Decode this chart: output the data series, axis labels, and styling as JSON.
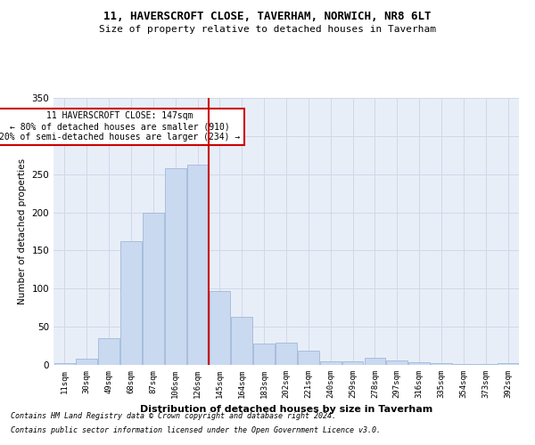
{
  "title1": "11, HAVERSCROFT CLOSE, TAVERHAM, NORWICH, NR8 6LT",
  "title2": "Size of property relative to detached houses in Taverham",
  "xlabel": "Distribution of detached houses by size in Taverham",
  "ylabel": "Number of detached properties",
  "categories": [
    "11sqm",
    "30sqm",
    "49sqm",
    "68sqm",
    "87sqm",
    "106sqm",
    "126sqm",
    "145sqm",
    "164sqm",
    "183sqm",
    "202sqm",
    "221sqm",
    "240sqm",
    "259sqm",
    "278sqm",
    "297sqm",
    "316sqm",
    "335sqm",
    "354sqm",
    "373sqm",
    "392sqm"
  ],
  "values": [
    2,
    8,
    35,
    162,
    200,
    258,
    263,
    97,
    63,
    28,
    29,
    19,
    5,
    5,
    9,
    6,
    3,
    2,
    1,
    1,
    2
  ],
  "bar_color": "#c9d9f0",
  "bar_edge_color": "#a0b8d8",
  "annotation_text": "11 HAVERSCROFT CLOSE: 147sqm\n← 80% of detached houses are smaller (910)\n20% of semi-detached houses are larger (234) →",
  "annotation_box_color": "#ffffff",
  "annotation_border_color": "#cc0000",
  "vline_color": "#cc0000",
  "grid_color": "#d0d8e8",
  "bg_color": "#e8eef8",
  "footer1": "Contains HM Land Registry data © Crown copyright and database right 2024.",
  "footer2": "Contains public sector information licensed under the Open Government Licence v3.0.",
  "ylim": [
    0,
    350
  ],
  "yticks": [
    0,
    50,
    100,
    150,
    200,
    250,
    300,
    350
  ]
}
